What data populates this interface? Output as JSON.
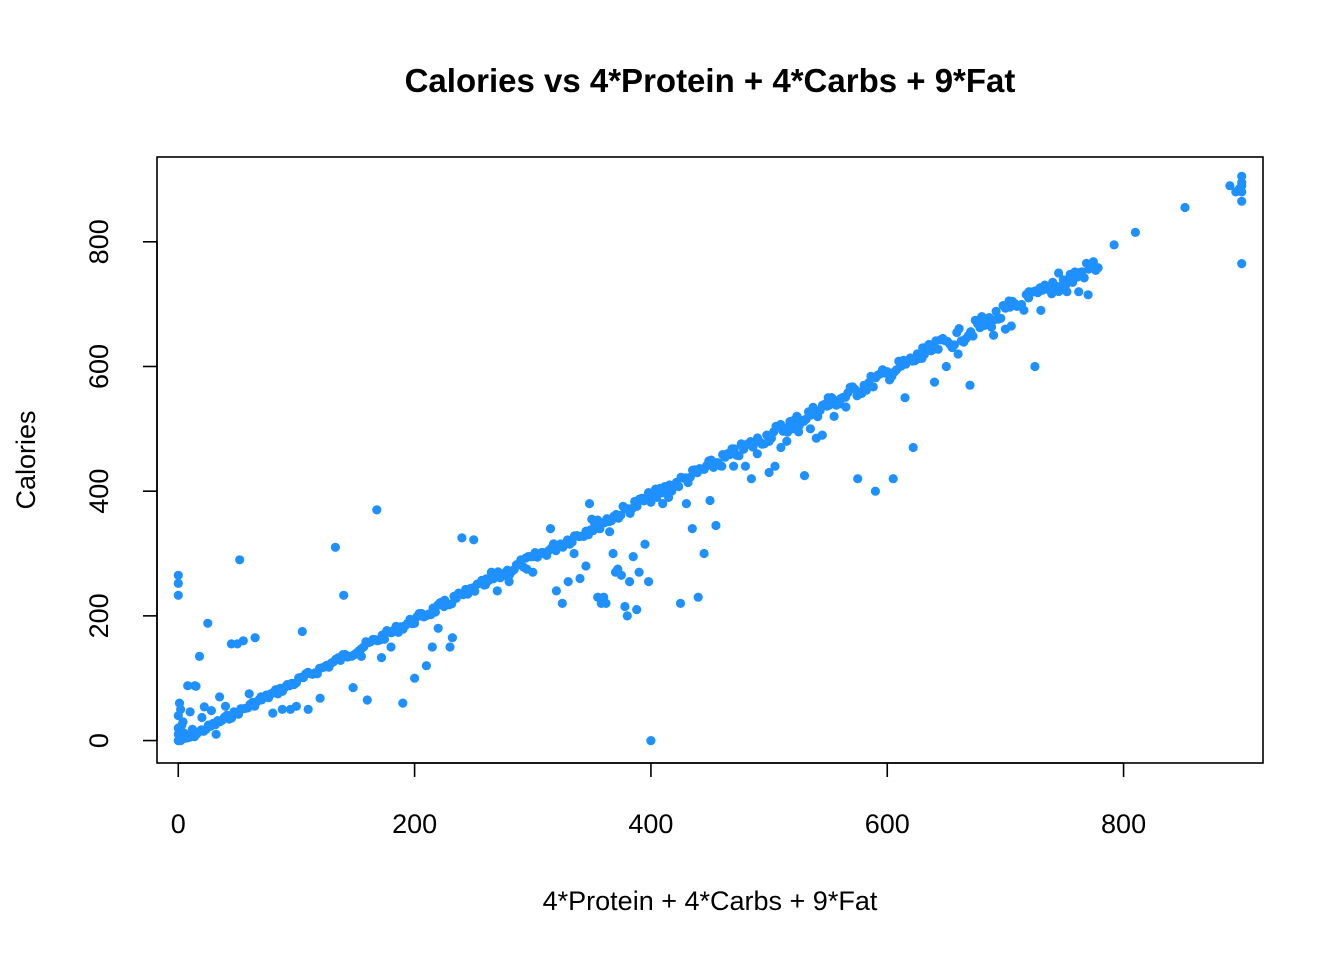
{
  "chart_data": {
    "type": "scatter",
    "title": "Calories vs 4*Protein + 4*Carbs + 9*Fat",
    "xlabel": "4*Protein + 4*Carbs + 9*Fat",
    "ylabel": "Calories",
    "xlim": [
      -18,
      918
    ],
    "ylim": [
      -36,
      936
    ],
    "x_ticks": [
      0,
      200,
      400,
      600,
      800
    ],
    "y_ticks": [
      0,
      200,
      400,
      600,
      800
    ],
    "x_tick_labels": [
      "0",
      "200",
      "400",
      "600",
      "800"
    ],
    "y_tick_labels": [
      "0",
      "200",
      "400",
      "600",
      "800"
    ],
    "grid": false,
    "legend": "none",
    "point_color": "#1E90FF",
    "trend": {
      "x_start": 0,
      "x_end": 900,
      "n": 460,
      "slope": 1.0,
      "spread": 8
    },
    "x": [
      0,
      0,
      0,
      0,
      0,
      0,
      1,
      2,
      3,
      4,
      5,
      8,
      10,
      12,
      14,
      15,
      18,
      20,
      22,
      25,
      28,
      32,
      35,
      40,
      45,
      50,
      52,
      55,
      60,
      65,
      70,
      80,
      88,
      95,
      100,
      105,
      110,
      120,
      133,
      140,
      148,
      155,
      160,
      168,
      172,
      180,
      190,
      200,
      205,
      210,
      215,
      220,
      225,
      230,
      232,
      240,
      245,
      250,
      260,
      265,
      270,
      280,
      290,
      295,
      300,
      310,
      315,
      320,
      325,
      330,
      335,
      340,
      345,
      348,
      350,
      352,
      355,
      358,
      360,
      362,
      365,
      368,
      370,
      372,
      375,
      378,
      380,
      382,
      385,
      388,
      390,
      395,
      398,
      400,
      405,
      410,
      415,
      420,
      425,
      430,
      435,
      440,
      445,
      450,
      455,
      460,
      470,
      480,
      485,
      490,
      500,
      505,
      510,
      515,
      520,
      525,
      530,
      535,
      540,
      545,
      550,
      555,
      560,
      565,
      575,
      590,
      605,
      615,
      622,
      630,
      640,
      650,
      660,
      670,
      680,
      690,
      700,
      703,
      705,
      720,
      725,
      730,
      740,
      745,
      752,
      762,
      770,
      792,
      810,
      852,
      890,
      895,
      898,
      900,
      900,
      900,
      900,
      900,
      900
    ],
    "y": [
      265,
      252,
      233,
      40,
      20,
      10,
      60,
      50,
      25,
      30,
      12,
      88,
      46,
      18,
      88,
      87,
      135,
      37,
      54,
      188,
      48,
      10,
      70,
      55,
      155,
      155,
      290,
      160,
      75,
      165,
      70,
      44,
      50,
      50,
      55,
      175,
      50,
      68,
      310,
      233,
      85,
      135,
      65,
      370,
      133,
      150,
      60,
      100,
      200,
      120,
      150,
      180,
      215,
      150,
      165,
      325,
      235,
      322,
      250,
      270,
      240,
      255,
      290,
      275,
      270,
      300,
      340,
      240,
      220,
      255,
      300,
      260,
      280,
      380,
      355,
      350,
      230,
      220,
      230,
      220,
      335,
      300,
      270,
      275,
      265,
      215,
      200,
      255,
      295,
      210,
      270,
      315,
      255,
      0,
      390,
      380,
      390,
      410,
      220,
      380,
      340,
      230,
      300,
      385,
      345,
      440,
      440,
      440,
      420,
      460,
      430,
      440,
      470,
      480,
      500,
      495,
      425,
      500,
      485,
      490,
      550,
      520,
      540,
      535,
      420,
      400,
      420,
      550,
      470,
      630,
      575,
      600,
      620,
      570,
      680,
      650,
      660,
      705,
      665,
      720,
      600,
      690,
      735,
      750,
      720,
      720,
      715,
      795,
      815,
      855,
      890,
      880,
      885,
      905,
      895,
      890,
      880,
      865,
      765
    ]
  }
}
